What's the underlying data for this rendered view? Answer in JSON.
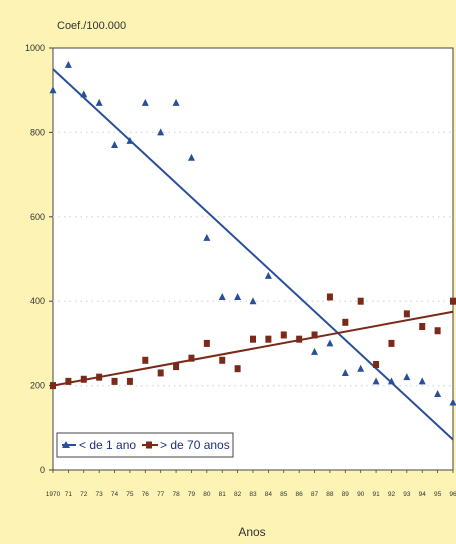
{
  "chart_data": {
    "type": "scatter",
    "title": "",
    "ylabel": "Coef./100.000",
    "xlabel": "Anos",
    "ylim": [
      0,
      1000
    ],
    "yticks": [
      0,
      200,
      400,
      600,
      800,
      1000
    ],
    "x": [
      1970,
      1971,
      1972,
      1973,
      1974,
      1975,
      1976,
      1977,
      1978,
      1979,
      1980,
      1981,
      1982,
      1983,
      1984,
      1985,
      1986,
      1987,
      1988,
      1989,
      1990,
      1991,
      1992,
      1993,
      1994,
      1995,
      1996
    ],
    "xtick_labels": [
      "1970",
      "71",
      "72",
      "73",
      "74",
      "75",
      "76",
      "77",
      "78",
      "79",
      "80",
      "81",
      "82",
      "83",
      "84",
      "85",
      "86",
      "87",
      "88",
      "89",
      "90",
      "91",
      "92",
      "93",
      "94",
      "95",
      "96"
    ],
    "grid": true,
    "legend_position": "bottom-left",
    "series": [
      {
        "name": "< de 1 ano",
        "marker": "triangle",
        "color": "#2a4f9a",
        "values": [
          900,
          960,
          890,
          870,
          770,
          780,
          870,
          800,
          870,
          740,
          550,
          410,
          410,
          400,
          460,
          null,
          null,
          280,
          300,
          230,
          240,
          210,
          210,
          220,
          210,
          180,
          160
        ],
        "trend": [
          950,
          72
        ]
      },
      {
        "name": "> de 70 anos",
        "marker": "square",
        "color": "#7a2a18",
        "values": [
          200,
          210,
          215,
          220,
          210,
          210,
          260,
          230,
          245,
          265,
          300,
          260,
          240,
          310,
          310,
          320,
          310,
          320,
          410,
          350,
          400,
          250,
          300,
          370,
          340,
          330,
          400
        ],
        "trend": [
          200,
          375
        ]
      }
    ]
  }
}
